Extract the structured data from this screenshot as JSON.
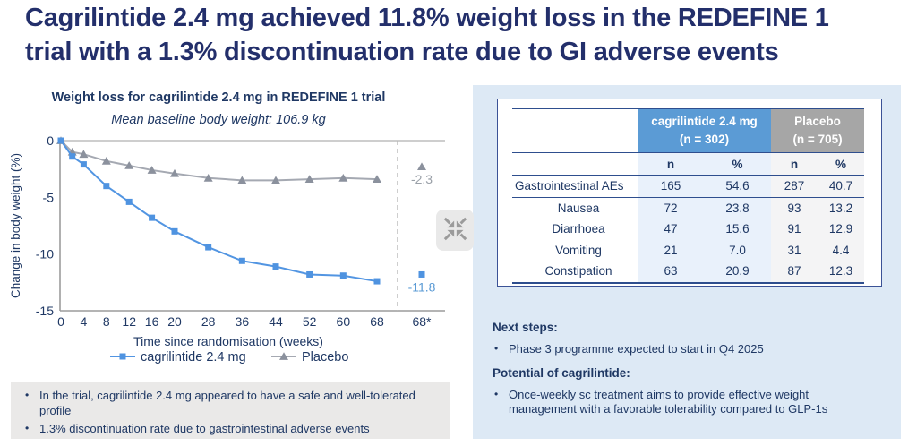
{
  "title": "Cagrilintide 2.4 mg achieved 11.8% weight loss in the REDEFINE 1 trial with a 1.3% discontinuation rate due to GI adverse events",
  "colors": {
    "title_navy": "#232f6b",
    "navy": "#1f3864",
    "accent_blue": "#5b9bd5",
    "header_gray": "#a6a6a6",
    "panel_bg": "#dde9f5",
    "line_blue": "#5295e2",
    "line_gray": "#a5a9b2",
    "marker_gray": "#8b919d",
    "box_gray": "#eae9e8"
  },
  "chart_data": {
    "type": "line",
    "title": "Weight loss for cagrilintide 2.4 mg in REDEFINE 1 trial",
    "subtitle": "Mean baseline body weight: 106.9 kg",
    "xlabel": "Time since randomisation (weeks)",
    "ylabel": "Change in body weight (%)",
    "ylim": [
      -15,
      0
    ],
    "y_ticks": [
      0,
      -5,
      -10,
      -15
    ],
    "y_tick_labels": [
      "0",
      "-5",
      "-10",
      "-15"
    ],
    "x_tick_weeks": [
      0,
      4,
      8,
      12,
      16,
      20,
      28,
      36,
      44,
      52,
      60,
      68
    ],
    "x_tick_labels": [
      "0",
      "4",
      "8",
      "12",
      "16",
      "20",
      "28",
      "36",
      "44",
      "52",
      "60",
      "68"
    ],
    "offtrial_tick_label": "68*",
    "grid": "zero-line-only",
    "legend_position": "bottom",
    "weeks": [
      0,
      2,
      4,
      8,
      12,
      16,
      20,
      28,
      36,
      44,
      52,
      60,
      68
    ],
    "series": [
      {
        "name": "Placebo",
        "marker": "triangle",
        "line_color": "#a5a9b2",
        "marker_color": "#8b919d",
        "values": [
          0,
          -1.0,
          -1.2,
          -1.8,
          -2.2,
          -2.6,
          -2.9,
          -3.3,
          -3.5,
          -3.5,
          -3.4,
          -3.3,
          -3.4
        ],
        "final_value": -2.3,
        "final_label": "-2.3",
        "final_label_color": "#9aa0a8"
      },
      {
        "name": "cagrilintide 2.4 mg",
        "marker": "square",
        "line_color": "#5295e2",
        "marker_color": "#4f93e0",
        "values": [
          0,
          -1.4,
          -2.1,
          -4.0,
          -5.4,
          -6.8,
          -8.0,
          -9.4,
          -10.6,
          -11.1,
          -11.8,
          -11.9,
          -12.4
        ],
        "final_value": -11.8,
        "final_label": "-11.8",
        "final_label_color": "#5b9bd5"
      }
    ]
  },
  "ae_table": {
    "group_headers": [
      {
        "line1": "cagrilintide 2.4 mg",
        "line2": "(n = 302)"
      },
      {
        "line1": "Placebo",
        "line2": "(n = 705)"
      }
    ],
    "sub_headers": [
      "n",
      "%",
      "n",
      "%"
    ],
    "rows": [
      {
        "label": "Gastrointestinal AEs",
        "values": [
          "165",
          "54.6",
          "287",
          "40.7"
        ]
      },
      {
        "label": "Nausea",
        "values": [
          "72",
          "23.8",
          "93",
          "13.2"
        ]
      },
      {
        "label": "Diarrhoea",
        "values": [
          "47",
          "15.6",
          "91",
          "12.9"
        ]
      },
      {
        "label": "Vomiting",
        "values": [
          "21",
          "7.0",
          "31",
          "4.4"
        ]
      },
      {
        "label": "Constipation",
        "values": [
          "63",
          "20.9",
          "87",
          "12.3"
        ]
      }
    ]
  },
  "safety_box": {
    "bullets": [
      "In the trial, cagrilintide 2.4 mg appeared to have a safe and well-tolerated profile",
      "1.3% discontinuation rate due to gastrointestinal adverse events"
    ]
  },
  "notes": {
    "sections": [
      {
        "heading": "Next steps:",
        "bullets": [
          "Phase 3 programme expected to start in Q4 2025"
        ]
      },
      {
        "heading": "Potential of cagrilintide:",
        "bullets": [
          "Once-weekly sc treatment aims to provide effective weight management with a favorable tolerability compared to GLP-1s"
        ]
      }
    ]
  },
  "icons": {
    "collapse": "collapse-arrows-icon"
  }
}
